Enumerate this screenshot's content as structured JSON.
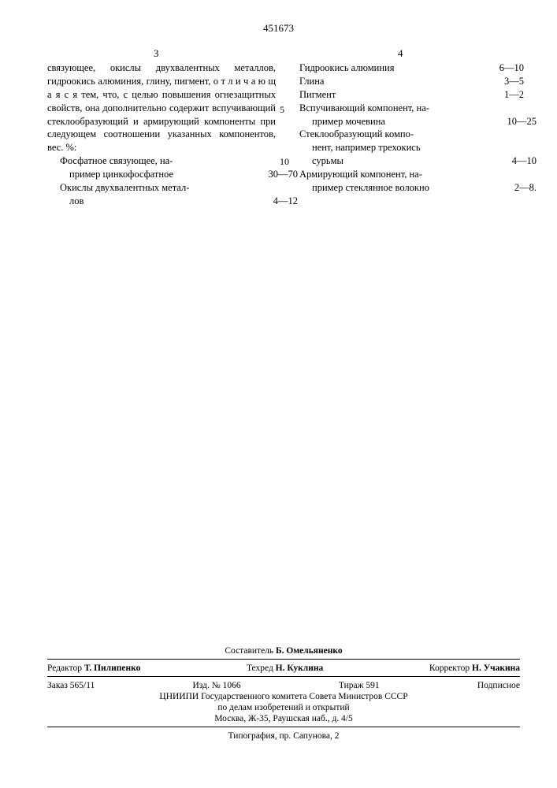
{
  "doc_number": "451673",
  "col_left_num": "3",
  "col_right_num": "4",
  "line_marker_5": "5",
  "line_marker_10": "10",
  "left_text": {
    "para": "связующее, окислы двухвалентных металлов, гидроокись алюминия, глину, пигмент, о т л и ч а ю щ а я с я  тем, что, с целью повышения огнезащитных свойств, она дополнительно содержит вспучивающий стеклообразующий и армирующий компоненты при следующем соотношении указанных компонентов, вес. %:",
    "r1_label": "Фосфатное связующее, на-",
    "r1b_label": "пример цинкофосфатное",
    "r1b_val": "30—70",
    "r2_label": "Окислы двухвалентных метал-",
    "r2b_label": "лов",
    "r2b_val": "4—12"
  },
  "right_text": {
    "r1_label": "Гидроокись алюминия",
    "r1_val": "6—10",
    "r2_label": "Глина",
    "r2_val": "3—5",
    "r3_label": "Пигмент",
    "r3_val": "1—2",
    "r4_label": "Вспучивающий компонент, на-",
    "r4b_label": "пример мочевина",
    "r4b_val": "10—25",
    "r5_label": "Стеклообразующий компо-",
    "r5b_label": "нент, например трехокись",
    "r5c_label": "сурьмы",
    "r5c_val": "4—10",
    "r6_label": "Армирующий компонент, на-",
    "r6b_label": "пример стеклянное волокно",
    "r6b_val": "2—8."
  },
  "footer": {
    "compiler_label": "Составитель",
    "compiler_name": "Б. Омельяненко",
    "editor_label": "Редактор",
    "editor_name": "Т. Пилипенко",
    "tech_label": "Техред",
    "tech_name": "Н. Куклина",
    "corrector_label": "Корректор",
    "corrector_name": "Н. Учакина",
    "order": "Заказ 565/11",
    "izd": "Изд. № 1066",
    "tirazh": "Тираж 591",
    "podpisnoe": "Подписное",
    "org1": "ЦНИИПИ Государственного комитета Совета Министров СССР",
    "org2": "по делам изобретений и открытий",
    "org3": "Москва, Ж-35, Раушская наб., д. 4/5",
    "typo": "Типография, пр. Сапунова, 2"
  }
}
